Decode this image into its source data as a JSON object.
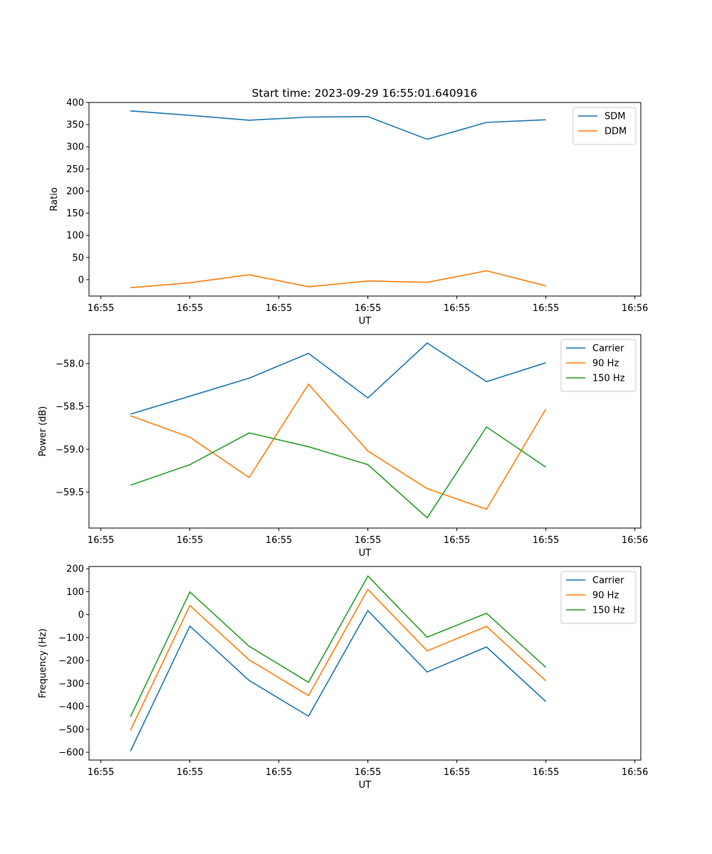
{
  "figure": {
    "title": "Start time: 2023-09-29 16:55:01.640916"
  },
  "chart_data": [
    {
      "type": "line",
      "name": "ratio",
      "title": "",
      "xlabel": "UT",
      "ylabel": "Ratio",
      "x": [
        0.5,
        1.5,
        2.5,
        3.5,
        4.5,
        5.5,
        6.5,
        7.5
      ],
      "xlim": [
        -0.2,
        9.1
      ],
      "xticks": [
        0,
        1.5,
        3.0,
        4.5,
        6.0,
        7.5,
        9.0
      ],
      "xtick_labels": [
        "16:55",
        "16:55",
        "16:55",
        "16:55",
        "16:55",
        "16:55",
        "16:56"
      ],
      "ylim": [
        -37,
        400
      ],
      "yticks": [
        0,
        50,
        100,
        150,
        200,
        250,
        300,
        350,
        400
      ],
      "ytick_labels": [
        "0",
        "50",
        "100",
        "150",
        "200",
        "250",
        "300",
        "350",
        "400"
      ],
      "legend_position": "top-right",
      "series": [
        {
          "name": "SDM",
          "color": "#1f77b4",
          "values": [
            381,
            371,
            360,
            367,
            368,
            317,
            355,
            361
          ]
        },
        {
          "name": "DDM",
          "color": "#ff7f0e",
          "values": [
            -18,
            -7,
            11,
            -16,
            -3,
            -6,
            20,
            -14
          ]
        }
      ]
    },
    {
      "type": "line",
      "name": "power",
      "title": "",
      "xlabel": "UT",
      "ylabel": "Power (dB)",
      "x": [
        0.5,
        1.5,
        2.5,
        3.5,
        4.5,
        5.5,
        6.5,
        7.5
      ],
      "xlim": [
        -0.2,
        9.1
      ],
      "xticks": [
        0,
        1.5,
        3.0,
        4.5,
        6.0,
        7.5,
        9.0
      ],
      "xtick_labels": [
        "16:55",
        "16:55",
        "16:55",
        "16:55",
        "16:55",
        "16:55",
        "16:56"
      ],
      "ylim": [
        -59.92,
        -57.66
      ],
      "yticks": [
        -59.5,
        -59.0,
        -58.5,
        -58.0
      ],
      "ytick_labels": [
        "−59.5",
        "−59.0",
        "−58.5",
        "−58.0"
      ],
      "legend_position": "top-right",
      "series": [
        {
          "name": "Carrier",
          "color": "#1f77b4",
          "values": [
            -58.59,
            -58.38,
            -58.17,
            -57.88,
            -58.4,
            -57.76,
            -58.21,
            -57.99
          ]
        },
        {
          "name": "90 Hz",
          "color": "#ff7f0e",
          "values": [
            -58.61,
            -58.86,
            -59.33,
            -58.24,
            -59.02,
            -59.46,
            -59.7,
            -58.53
          ]
        },
        {
          "name": "150 Hz",
          "color": "#2ca02c",
          "values": [
            -59.42,
            -59.18,
            -58.81,
            -58.97,
            -59.18,
            -59.8,
            -58.74,
            -59.21
          ]
        }
      ]
    },
    {
      "type": "line",
      "name": "frequency",
      "title": "",
      "xlabel": "UT",
      "ylabel": "Frequency (Hz)",
      "x": [
        0.5,
        1.5,
        2.5,
        3.5,
        4.5,
        5.5,
        6.5,
        7.5
      ],
      "xlim": [
        -0.2,
        9.1
      ],
      "xticks": [
        0,
        1.5,
        3.0,
        4.5,
        6.0,
        7.5,
        9.0
      ],
      "xtick_labels": [
        "16:55",
        "16:55",
        "16:55",
        "16:55",
        "16:55",
        "16:55",
        "16:56"
      ],
      "ylim": [
        -634,
        210
      ],
      "yticks": [
        -600,
        -500,
        -400,
        -300,
        -200,
        -100,
        0,
        100,
        200
      ],
      "ytick_labels": [
        "−600",
        "−500",
        "−400",
        "−300",
        "−200",
        "−100",
        "0",
        "100",
        "200"
      ],
      "legend_position": "top-right",
      "series": [
        {
          "name": "Carrier",
          "color": "#1f77b4",
          "values": [
            -595,
            -50,
            -287,
            -443,
            18,
            -250,
            -141,
            -379
          ]
        },
        {
          "name": "90 Hz",
          "color": "#ff7f0e",
          "values": [
            -504,
            40,
            -197,
            -353,
            110,
            -158,
            -51,
            -289
          ]
        },
        {
          "name": "150 Hz",
          "color": "#2ca02c",
          "values": [
            -445,
            99,
            -138,
            -295,
            168,
            -98,
            6,
            -230
          ]
        }
      ]
    }
  ]
}
